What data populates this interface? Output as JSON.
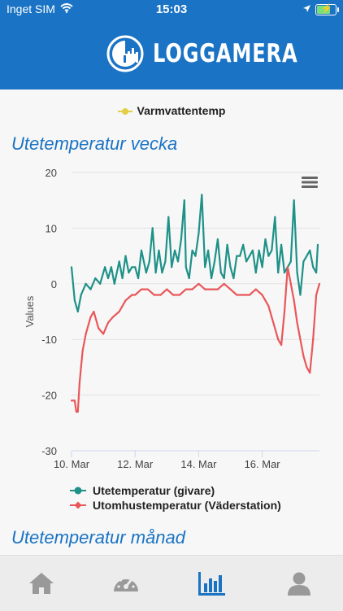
{
  "status_bar": {
    "carrier": "Inget SIM",
    "time": "15:03",
    "wifi_icon": "wifi-icon",
    "location_icon": "location-arrow-icon",
    "battery_icon": "battery-charging-icon"
  },
  "header": {
    "logo_icon": "loggamera-logo-icon",
    "brand": "LOGGAMERA",
    "background_color": "#1a73c4"
  },
  "top_legend": {
    "label": "Varmvattentemp",
    "color": "#e3cf45"
  },
  "sections": [
    {
      "title": "Utetemperatur vecka"
    },
    {
      "title": "Utetemperatur månad"
    }
  ],
  "chart_data": {
    "type": "line",
    "title": "",
    "xlabel": "",
    "ylabel": "Values",
    "ylim": [
      -30,
      20
    ],
    "yticks": [
      "20",
      "10",
      "0",
      "-10",
      "-20",
      "-30"
    ],
    "xlim": [
      10,
      17.8
    ],
    "xticks": [
      "10. Mar",
      "12. Mar",
      "14. Mar",
      "16. Mar"
    ],
    "grid": "horizontal",
    "legend": "bottom",
    "series": [
      {
        "name": "Utetemperatur (givare)",
        "color": "#1e9188",
        "x": [
          10.0,
          10.1,
          10.2,
          10.3,
          10.45,
          10.6,
          10.75,
          10.9,
          11.05,
          11.15,
          11.25,
          11.35,
          11.5,
          11.6,
          11.7,
          11.8,
          11.9,
          12.0,
          12.1,
          12.2,
          12.35,
          12.45,
          12.55,
          12.65,
          12.75,
          12.85,
          12.95,
          13.05,
          13.15,
          13.25,
          13.35,
          13.45,
          13.55,
          13.6,
          13.7,
          13.8,
          13.9,
          14.0,
          14.1,
          14.2,
          14.3,
          14.4,
          14.5,
          14.6,
          14.7,
          14.8,
          14.9,
          15.0,
          15.1,
          15.2,
          15.3,
          15.4,
          15.5,
          15.6,
          15.7,
          15.8,
          15.9,
          16.0,
          16.1,
          16.2,
          16.3,
          16.4,
          16.5,
          16.6,
          16.7,
          16.8,
          16.9,
          17.0,
          17.1,
          17.2,
          17.3,
          17.4,
          17.5,
          17.6,
          17.7,
          17.75
        ],
        "values": [
          3,
          -3,
          -5,
          -2,
          0,
          -1,
          1,
          0,
          3,
          1,
          3,
          0,
          4,
          1,
          5,
          2,
          3,
          3,
          1,
          6,
          2,
          4,
          10,
          2,
          6,
          2,
          4,
          12,
          3,
          6,
          4,
          8,
          15,
          3,
          1,
          6,
          5,
          9,
          16,
          3,
          6,
          1,
          4,
          8,
          2,
          1,
          7,
          3,
          1,
          5,
          5,
          7,
          4,
          5,
          6,
          2,
          6,
          3,
          8,
          5,
          6,
          12,
          2,
          7,
          2,
          3,
          4,
          15,
          2,
          -2,
          4,
          5,
          6,
          3,
          2,
          7
        ]
      },
      {
        "name": "Utomhustemperatur (Väderstation)",
        "color": "#e8575a",
        "x": [
          10.0,
          10.1,
          10.15,
          10.2,
          10.25,
          10.3,
          10.35,
          10.45,
          10.6,
          10.7,
          10.85,
          11.0,
          11.15,
          11.3,
          11.5,
          11.7,
          11.9,
          12.0,
          12.2,
          12.4,
          12.6,
          12.8,
          13.0,
          13.2,
          13.4,
          13.6,
          13.8,
          14.0,
          14.2,
          14.4,
          14.6,
          14.8,
          15.0,
          15.2,
          15.4,
          15.6,
          15.8,
          16.0,
          16.1,
          16.2,
          16.3,
          16.4,
          16.5,
          16.6,
          16.7,
          16.8,
          16.9,
          17.0,
          17.1,
          17.2,
          17.3,
          17.4,
          17.5,
          17.6,
          17.7,
          17.8
        ],
        "values": [
          -21,
          -21,
          -23,
          -23,
          -18,
          -15,
          -12,
          -9,
          -6,
          -5,
          -8,
          -9,
          -7,
          -6,
          -5,
          -3,
          -2,
          -2,
          -1,
          -1,
          -2,
          -2,
          -1,
          -2,
          -2,
          -1,
          -1,
          0,
          -1,
          -1,
          -1,
          0,
          -1,
          -2,
          -2,
          -2,
          -1,
          -2,
          -3,
          -4,
          -6,
          -8,
          -10,
          -11,
          -5,
          3,
          0,
          -3,
          -7,
          -10,
          -13,
          -15,
          -16,
          -10,
          -2,
          0
        ]
      }
    ]
  },
  "chart_menu_icon": "hamburger-menu-icon",
  "tabbar": {
    "items": [
      {
        "icon": "home-icon",
        "active": false
      },
      {
        "icon": "gauge-icon",
        "active": false
      },
      {
        "icon": "bar-chart-icon",
        "active": true
      },
      {
        "icon": "user-icon",
        "active": false
      }
    ],
    "active_color": "#1a73c4",
    "inactive_color": "#999999"
  }
}
